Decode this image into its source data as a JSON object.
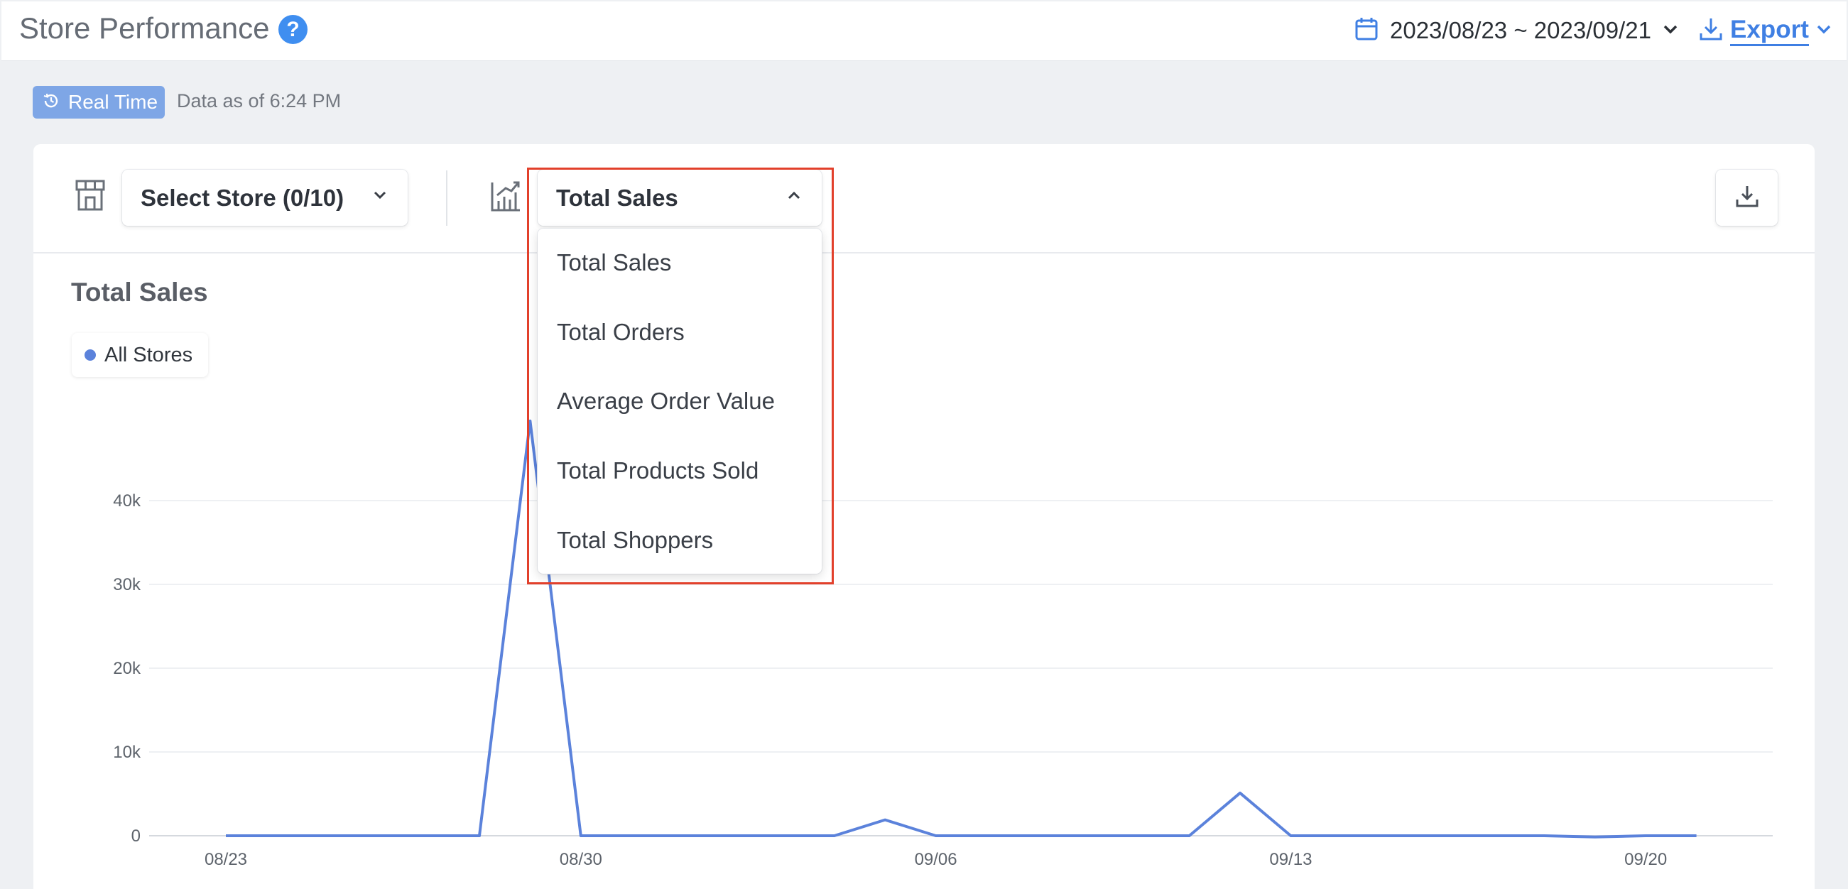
{
  "header": {
    "title": "Store Performance",
    "help_icon": "question-circle-icon",
    "date_range": "2023/08/23 ~ 2023/09/21",
    "export_label": "Export"
  },
  "status": {
    "badge_label": "Real Time",
    "data_as_of": "Data as of 6:24 PM"
  },
  "toolbar": {
    "store_select_label": "Select Store (0/10)",
    "metric_select_label": "Total Sales",
    "metric_options": [
      "Total Sales",
      "Total Orders",
      "Average Order Value",
      "Total Products Sold",
      "Total Shoppers"
    ]
  },
  "chart_section": {
    "title": "Total Sales",
    "legend_label": "All Stores"
  },
  "colors": {
    "accent": "#3f7fe3",
    "series": "#5b82db",
    "badge": "#7ea6e6",
    "highlight": "#e2402b"
  },
  "chart_data": {
    "type": "line",
    "title": "",
    "xlabel": "",
    "ylabel": "",
    "ylim": [
      0,
      48000
    ],
    "yticks": [
      0,
      10000,
      20000,
      30000,
      40000
    ],
    "ytick_labels": [
      "0",
      "10k",
      "20k",
      "30k",
      "40k"
    ],
    "xtick_labels": [
      "08/23",
      "08/30",
      "09/06",
      "09/13",
      "09/20"
    ],
    "grid": true,
    "x": [
      "08/23",
      "08/24",
      "08/25",
      "08/26",
      "08/27",
      "08/28",
      "08/29",
      "08/30",
      "08/31",
      "09/01",
      "09/02",
      "09/03",
      "09/04",
      "09/05",
      "09/06",
      "09/07",
      "09/08",
      "09/09",
      "09/10",
      "09/11",
      "09/12",
      "09/13",
      "09/14",
      "09/15",
      "09/16",
      "09/17",
      "09/18",
      "09/19",
      "09/20",
      "09/21"
    ],
    "series": [
      {
        "name": "All Stores",
        "values": [
          0,
          0,
          0,
          0,
          0,
          0,
          49500,
          0,
          0,
          0,
          0,
          0,
          0,
          1900,
          0,
          0,
          0,
          0,
          0,
          0,
          5100,
          0,
          0,
          0,
          0,
          0,
          0,
          -150,
          0,
          0
        ]
      }
    ]
  }
}
